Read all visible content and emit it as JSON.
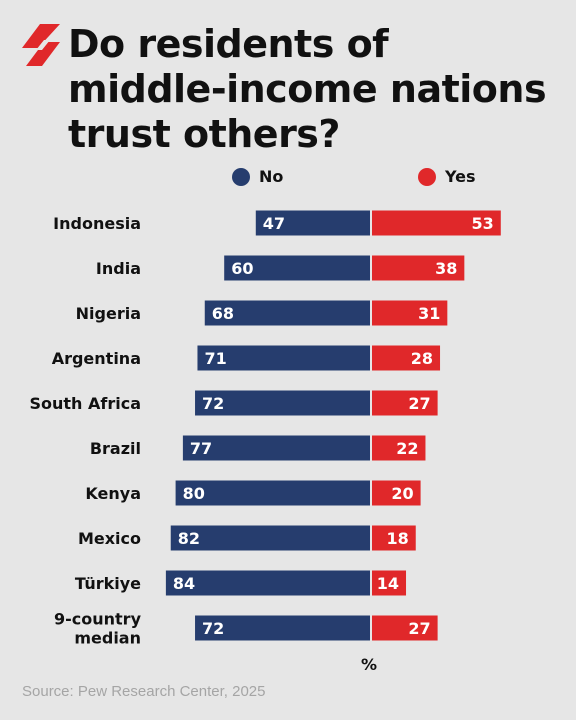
{
  "title_lines": [
    "Do residents of",
    "middle-income nations",
    "trust others?"
  ],
  "colors": {
    "no": "#263d6e",
    "yes": "#e0282a",
    "background": "#e6e6e6"
  },
  "logo_icon": "sbs-logo-icon",
  "chart_data": {
    "type": "bar",
    "orientation": "horizontal-diverging",
    "title": "Do residents of middle-income nations trust others?",
    "categories": [
      "Indonesia",
      "India",
      "Nigeria",
      "Argentina",
      "South Africa",
      "Brazil",
      "Kenya",
      "Mexico",
      "Türkiye",
      "9-country median"
    ],
    "series": [
      {
        "name": "No",
        "values": [
          47,
          60,
          68,
          71,
          72,
          77,
          80,
          82,
          84,
          72
        ]
      },
      {
        "name": "Yes",
        "values": [
          53,
          38,
          31,
          28,
          27,
          22,
          20,
          18,
          14,
          27
        ]
      }
    ],
    "legend_position": "top",
    "unit": "%",
    "grid": false
  },
  "source": "Source: Pew Research Center, 2025"
}
